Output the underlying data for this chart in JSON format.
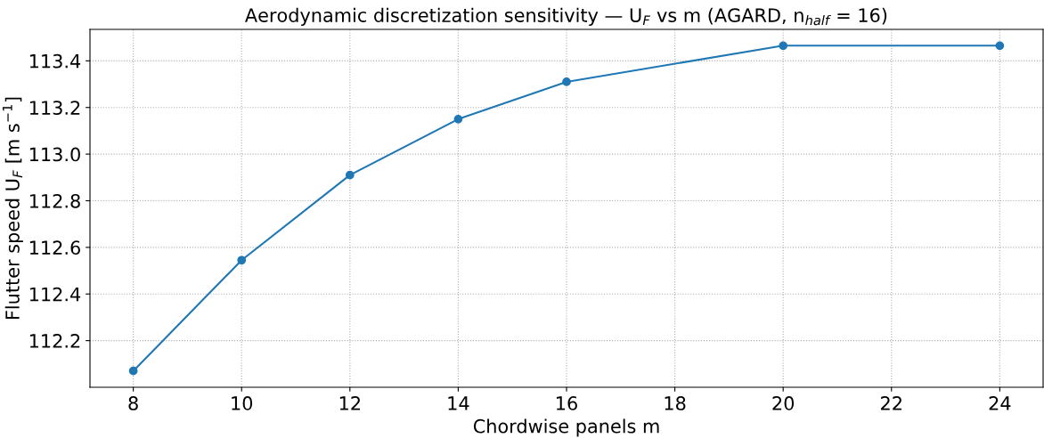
{
  "chart_data": {
    "type": "line",
    "title": "Aerodynamic discretization sensitivity — U$_{F}$ vs m (AGARD, n$_{half}$ = 16)",
    "xlabel": "Chordwise panels m",
    "ylabel": "Flutter speed U$_{F}$ [m s$^{−1}$]",
    "x": [
      8,
      10,
      12,
      14,
      16,
      20,
      24
    ],
    "series": [
      {
        "color": "#1f77b4",
        "values": [
          112.07,
          112.545,
          112.91,
          113.15,
          113.31,
          113.465,
          113.465
        ]
      }
    ],
    "xlim": [
      7.2,
      24.8
    ],
    "xticks": [
      8,
      10,
      12,
      14,
      16,
      18,
      20,
      22,
      24
    ],
    "ylim": [
      112.0,
      113.535
    ],
    "yticks": [
      {
        "value": 112.2,
        "label": "112.2"
      },
      {
        "value": 112.4,
        "label": "112.4"
      },
      {
        "value": 112.6,
        "label": "112.6"
      },
      {
        "value": 112.8,
        "label": "112.8"
      },
      {
        "value": 113.0,
        "label": "113.0"
      },
      {
        "value": 113.2,
        "label": "113.2"
      },
      {
        "value": 113.4,
        "label": "113.4"
      }
    ],
    "grid": true,
    "marker": "circle",
    "line_style": "solid"
  }
}
